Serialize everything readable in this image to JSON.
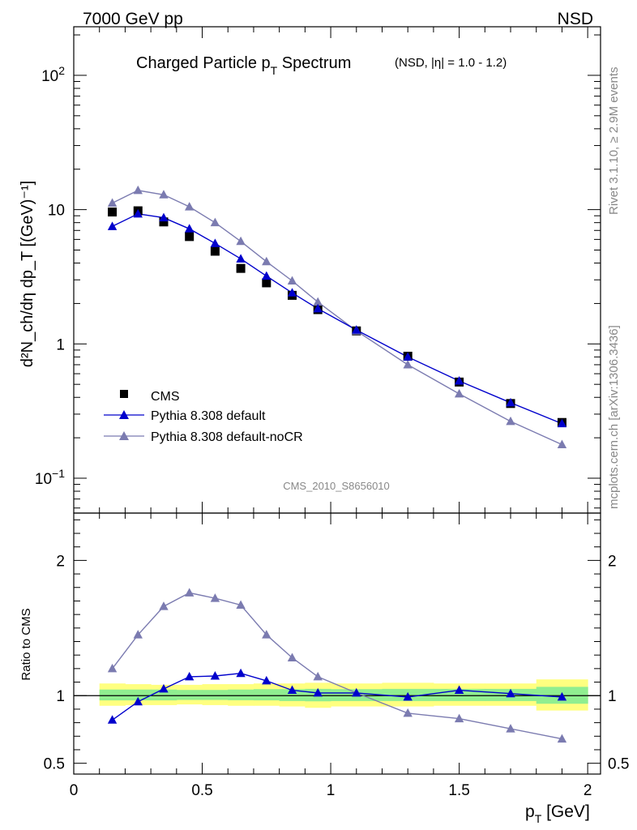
{
  "header": {
    "left": "7000 GeV pp",
    "right": "NSD"
  },
  "side_text": {
    "rivet": "Rivet 3.1.10, ≥ 2.9M events",
    "mcplots": "mcplots.cern.ch [arXiv:1306.3436]"
  },
  "analysis_tag": "CMS_2010_S8656010",
  "colors": {
    "cms": "#000000",
    "default": "#0000cc",
    "nocr": "#7b7bb0",
    "band_yellow": "#ffff80",
    "band_green": "#90ee90"
  },
  "chart_data": [
    {
      "type": "scatter",
      "title_main": "Charged Particle p",
      "title_sub": "T",
      "title_tail": " Spectrum",
      "title_extra": "(NSD, |η| = 1.0 - 1.2)",
      "ylabel": "d²N_ch/dη dp_T [(GeV)⁻¹]",
      "yscale": "log",
      "xlim": [
        0,
        2.05
      ],
      "ylim": [
        0.055,
        230
      ],
      "y_ticks": [
        {
          "value": 0.1,
          "base": "10",
          "exp": "−1"
        },
        {
          "value": 1,
          "base": "1",
          "exp": ""
        },
        {
          "value": 10,
          "base": "10",
          "exp": ""
        },
        {
          "value": 100,
          "base": "10",
          "exp": "2"
        }
      ],
      "legend": {
        "placement": "bottom-left",
        "entries": [
          "CMS",
          "Pythia 8.308 default",
          "Pythia 8.308 default-noCR"
        ]
      },
      "x": [
        0.15,
        0.25,
        0.35,
        0.45,
        0.55,
        0.65,
        0.75,
        0.85,
        0.95,
        1.1,
        1.3,
        1.5,
        1.7,
        1.9
      ],
      "series": [
        {
          "name": "CMS",
          "values": [
            9.6,
            9.8,
            8.1,
            6.3,
            4.9,
            3.65,
            2.85,
            2.3,
            1.8,
            1.25,
            0.81,
            0.52,
            0.36,
            0.26
          ]
        },
        {
          "name": "Pythia 8.308 default",
          "values": [
            7.5,
            9.3,
            8.7,
            7.2,
            5.6,
            4.3,
            3.2,
            2.4,
            1.83,
            1.27,
            0.8,
            0.53,
            0.365,
            0.255
          ]
        },
        {
          "name": "Pythia 8.308 default-noCR",
          "values": [
            11.2,
            13.9,
            12.9,
            10.5,
            8.0,
            5.8,
            4.1,
            2.95,
            2.05,
            1.25,
            0.7,
            0.425,
            0.265,
            0.178
          ]
        }
      ]
    },
    {
      "type": "line",
      "ylabel": "Ratio to CMS",
      "xlabel": "p_T [GeV]",
      "xlabel_main": "p",
      "xlabel_sub": "T",
      "xlabel_tail": " [GeV]",
      "xlim": [
        0,
        2.05
      ],
      "ylim": [
        0.42,
        2.35
      ],
      "y_ticks": [
        {
          "value": 0.5,
          "label": "0.5"
        },
        {
          "value": 1,
          "label": "1"
        },
        {
          "value": 2,
          "label": "2"
        }
      ],
      "x_ticks": [
        {
          "value": 0,
          "label": "0"
        },
        {
          "value": 0.5,
          "label": "0.5"
        },
        {
          "value": 1,
          "label": "1"
        },
        {
          "value": 1.5,
          "label": "1.5"
        },
        {
          "value": 2,
          "label": "2"
        }
      ],
      "x": [
        0.15,
        0.25,
        0.35,
        0.45,
        0.55,
        0.65,
        0.75,
        0.85,
        0.95,
        1.1,
        1.3,
        1.5,
        1.7,
        1.9
      ],
      "series": [
        {
          "name": "Pythia 8.308 default",
          "values": [
            0.82,
            0.955,
            1.05,
            1.14,
            1.145,
            1.165,
            1.11,
            1.04,
            1.02,
            1.02,
            0.99,
            1.04,
            1.015,
            0.99
          ]
        },
        {
          "name": "Pythia 8.308 default-noCR",
          "values": [
            1.2,
            1.45,
            1.66,
            1.76,
            1.72,
            1.67,
            1.45,
            1.28,
            1.14,
            1.02,
            0.87,
            0.83,
            0.755,
            0.68
          ]
        }
      ],
      "bands": {
        "edges": [
          0.1,
          0.2,
          0.3,
          0.4,
          0.5,
          0.6,
          0.7,
          0.8,
          0.9,
          1.0,
          1.2,
          1.4,
          1.6,
          1.8,
          2.0
        ],
        "yellow": [
          [
            0.925,
            1.09
          ],
          [
            0.93,
            1.085
          ],
          [
            0.93,
            1.08
          ],
          [
            0.935,
            1.08
          ],
          [
            0.93,
            1.085
          ],
          [
            0.925,
            1.085
          ],
          [
            0.925,
            1.09
          ],
          [
            0.92,
            1.09
          ],
          [
            0.91,
            1.095
          ],
          [
            0.92,
            1.09
          ],
          [
            0.92,
            1.095
          ],
          [
            0.925,
            1.09
          ],
          [
            0.925,
            1.09
          ],
          [
            0.89,
            1.12
          ]
        ],
        "green": [
          [
            0.965,
            1.045
          ],
          [
            0.965,
            1.045
          ],
          [
            0.965,
            1.045
          ],
          [
            0.968,
            1.042
          ],
          [
            0.968,
            1.042
          ],
          [
            0.966,
            1.045
          ],
          [
            0.965,
            1.048
          ],
          [
            0.96,
            1.048
          ],
          [
            0.958,
            1.05
          ],
          [
            0.96,
            1.048
          ],
          [
            0.96,
            1.05
          ],
          [
            0.96,
            1.05
          ],
          [
            0.96,
            1.05
          ],
          [
            0.94,
            1.065
          ]
        ]
      }
    }
  ]
}
